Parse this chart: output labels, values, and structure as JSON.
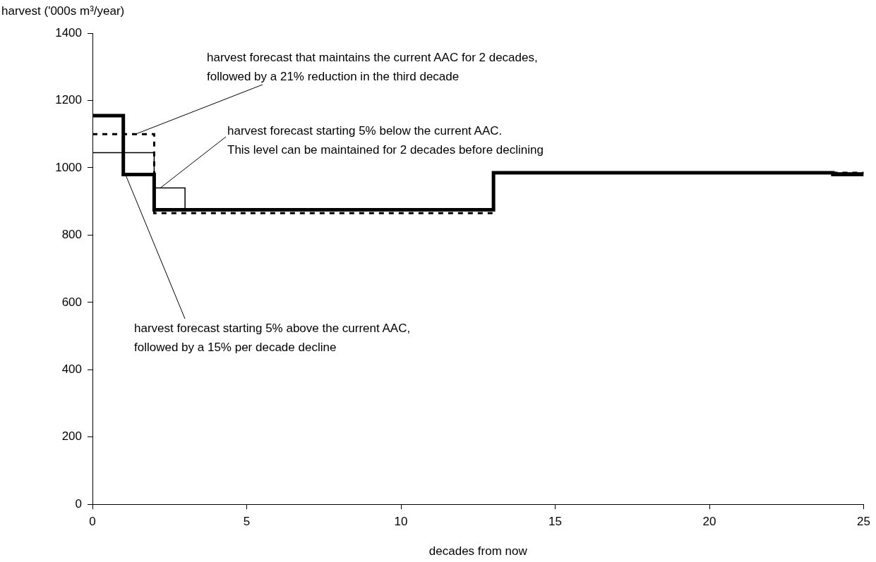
{
  "chart_data": {
    "type": "step",
    "xlabel": "decades from now",
    "ylabel": "harvest ('000s m³/year)",
    "x": [
      0,
      1,
      2,
      3,
      4,
      5,
      6,
      7,
      8,
      9,
      10,
      11,
      12,
      13,
      14,
      15,
      16,
      17,
      18,
      19,
      20,
      21,
      22,
      23,
      24,
      25
    ],
    "xlim": [
      0,
      25
    ],
    "xticks": [
      0,
      5,
      10,
      15,
      20,
      25
    ],
    "ylim": [
      0,
      1400
    ],
    "yticks": [
      0,
      200,
      400,
      600,
      800,
      1000,
      1200,
      1400
    ],
    "grid": false,
    "legend": false,
    "marker": "none",
    "series": [
      {
        "color": "#000000",
        "line_style": "dashed",
        "values": [
          1100,
          1100,
          865,
          865,
          865,
          865,
          865,
          865,
          865,
          865,
          865,
          865,
          865,
          985,
          985,
          985,
          985,
          985,
          985,
          985,
          985,
          985,
          985,
          985,
          985,
          985
        ]
      },
      {
        "color": "#000000",
        "line_style": "solid",
        "values": [
          1045,
          1045,
          940,
          875,
          875,
          875,
          875,
          875,
          875,
          875,
          875,
          875,
          875,
          985,
          985,
          985,
          985,
          985,
          985,
          985,
          985,
          985,
          985,
          985,
          985,
          985
        ]
      },
      {
        "color": "#000000",
        "line_style": "solid",
        "values": [
          1155,
          980,
          875,
          875,
          875,
          875,
          875,
          875,
          875,
          875,
          875,
          875,
          875,
          985,
          985,
          985,
          985,
          985,
          985,
          985,
          985,
          985,
          985,
          985,
          980,
          980
        ]
      }
    ],
    "annotations": [
      {
        "text": "harvest forecast that maintains the current AAC for 2 decades,\nfollowed by a 21% reduction in the third decade",
        "x": 1.4,
        "y": 1100
      },
      {
        "text": "harvest forecast starting 5% below the current AAC.\nThis level can be maintained for 2 decades before declining",
        "x": 2.2,
        "y": 940
      },
      {
        "text": "harvest forecast starting 5% above the current AAC,\nfollowed by a 15% per decade decline",
        "x": 1.07,
        "y": 980
      }
    ]
  }
}
